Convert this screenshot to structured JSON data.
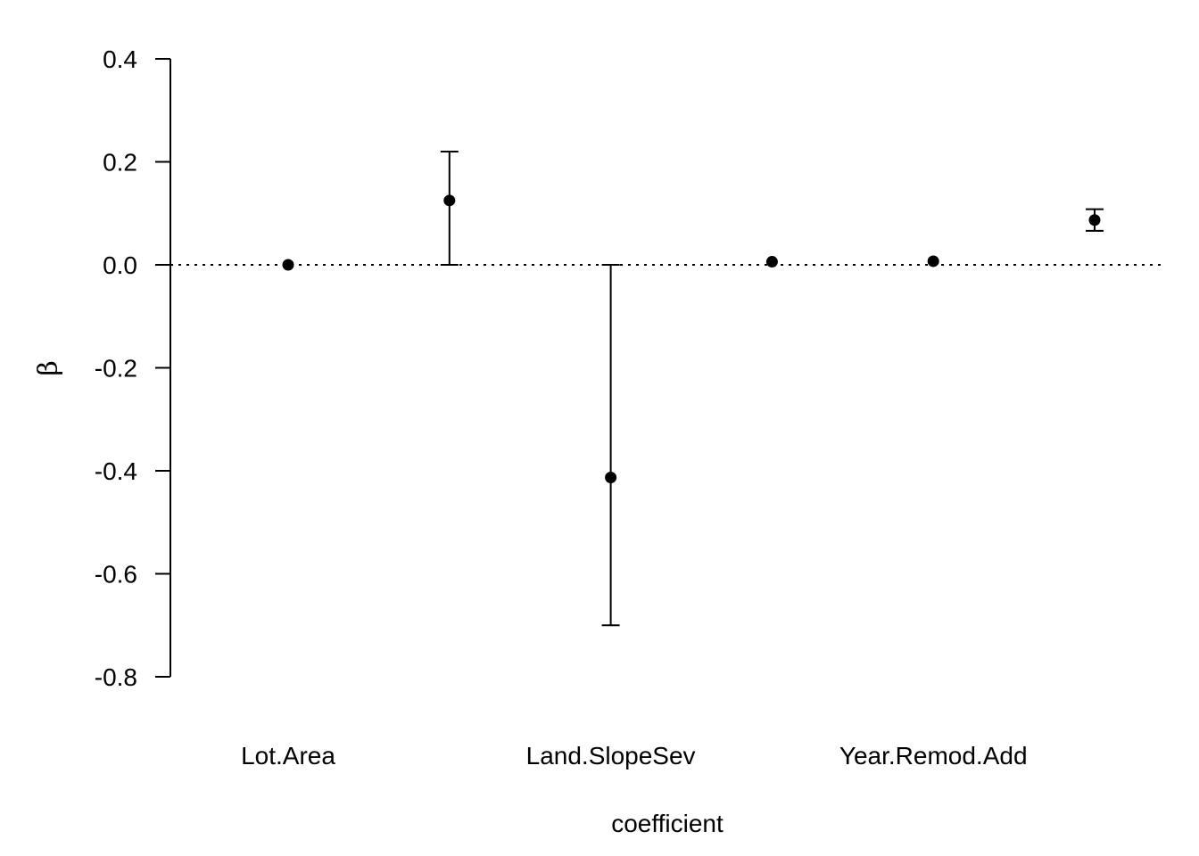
{
  "chart_data": {
    "type": "scatter",
    "subtype": "coefficient-plot-with-error-bars",
    "title": "",
    "xlabel": "coefficient",
    "ylabel": "β",
    "ylim": [
      -0.8,
      0.4
    ],
    "yticks": [
      0.4,
      0.2,
      0.0,
      -0.2,
      -0.4,
      -0.6,
      -0.8
    ],
    "ytick_labels": [
      "0.4",
      "0.2",
      "0.0",
      "-0.2",
      "-0.4",
      "-0.6",
      "-0.8"
    ],
    "reference_line": {
      "y": 0.0,
      "style": "dotted"
    },
    "grid": false,
    "legend": false,
    "categories": [
      "Lot.Area",
      "",
      "Land.SlopeSev",
      "",
      "Year.Remod.Add",
      ""
    ],
    "labeled_categories": [
      {
        "index": 0,
        "label": "Lot.Area"
      },
      {
        "index": 2,
        "label": "Land.SlopeSev"
      },
      {
        "index": 4,
        "label": "Year.Remod.Add"
      }
    ],
    "points": [
      {
        "estimate": 0.0,
        "lower": 0.0,
        "upper": 0.0
      },
      {
        "estimate": 0.125,
        "lower": 0.0,
        "upper": 0.22
      },
      {
        "estimate": -0.413,
        "lower": -0.7,
        "upper": 0.0
      },
      {
        "estimate": 0.006,
        "lower": 0.006,
        "upper": 0.006
      },
      {
        "estimate": 0.007,
        "lower": 0.007,
        "upper": 0.007
      },
      {
        "estimate": 0.087,
        "lower": 0.066,
        "upper": 0.108
      }
    ],
    "colors": {
      "points": "#000000",
      "lines": "#000000",
      "background": "#ffffff"
    }
  }
}
